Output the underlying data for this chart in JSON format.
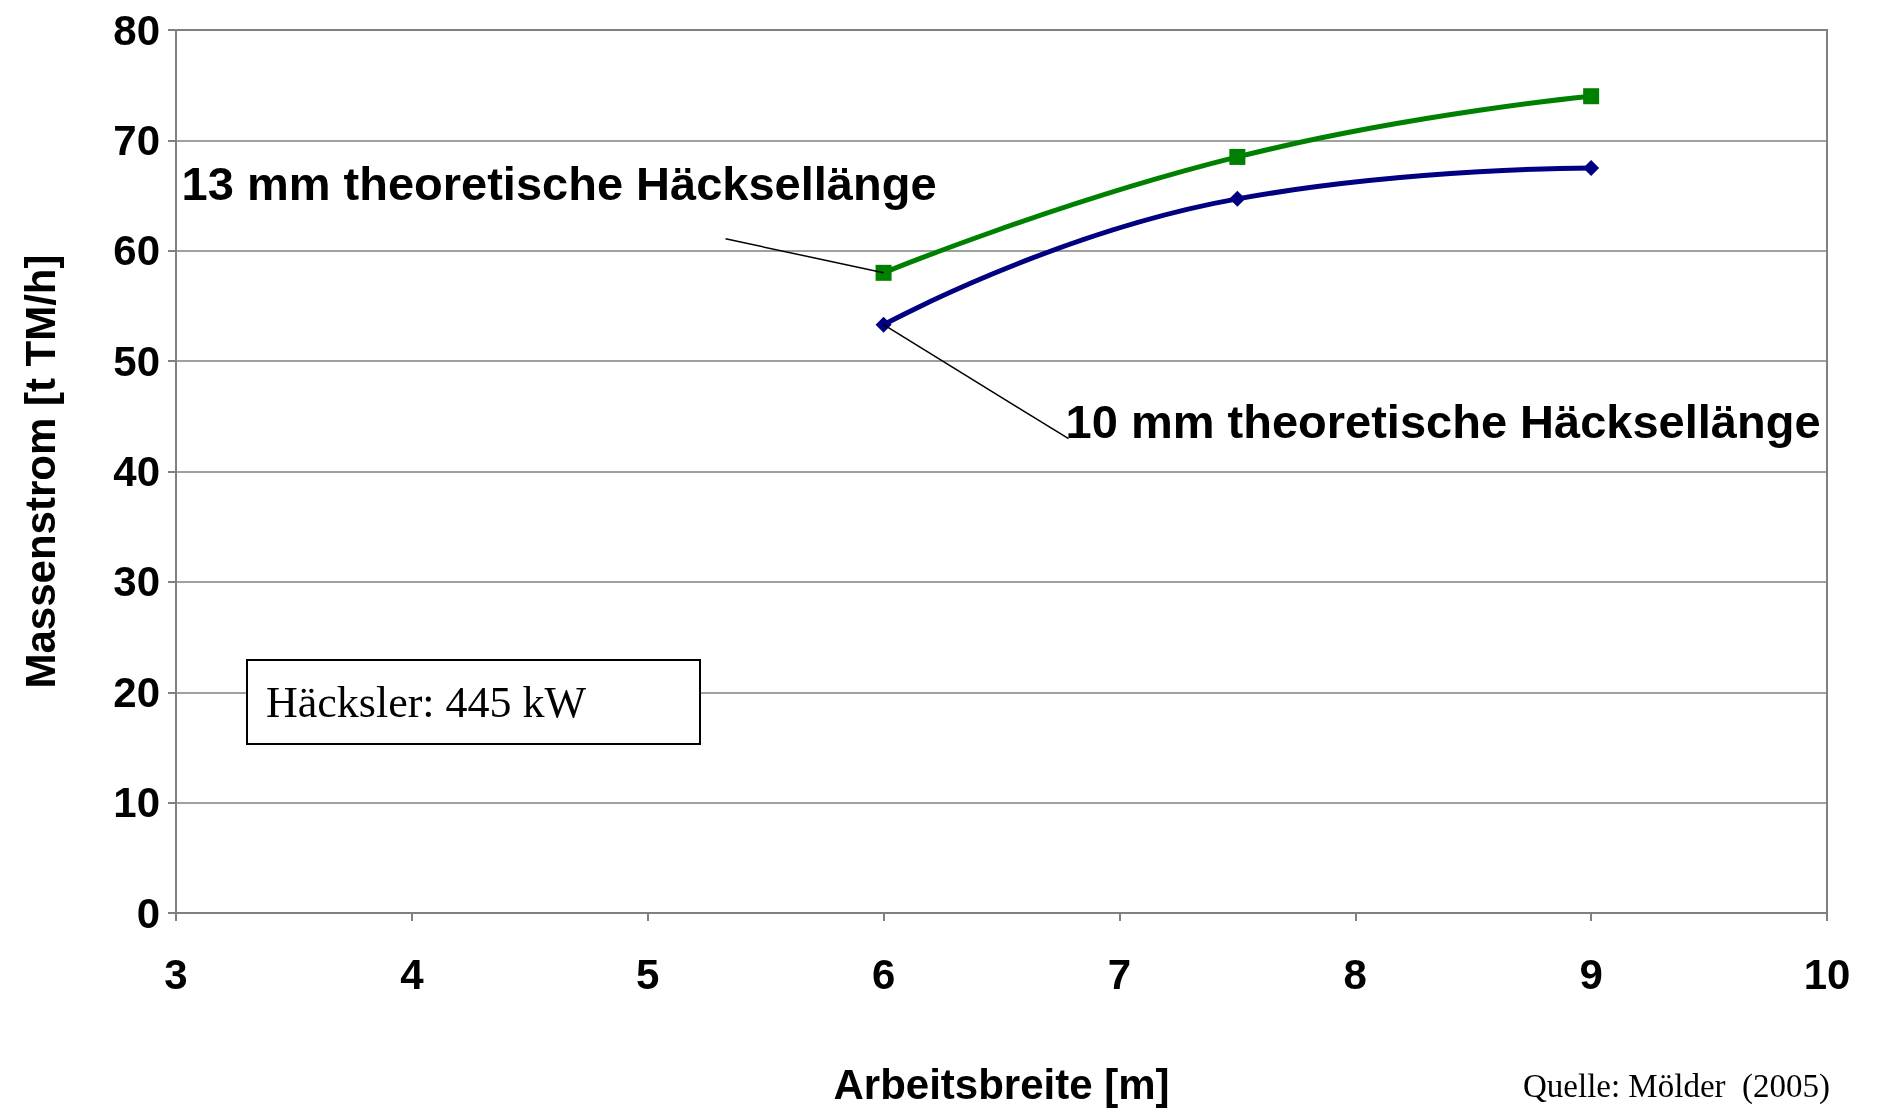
{
  "chart_data": {
    "type": "line",
    "xlabel": "Arbeitsbreite [m]",
    "ylabel": "Massenstrom [t TM/h]",
    "x": [
      6,
      7.5,
      9
    ],
    "series": [
      {
        "color": "#008000",
        "marker": "square",
        "values": [
          58,
          68.5,
          74
        ]
      },
      {
        "color": "#000080",
        "marker": "diamond",
        "values": [
          53.3,
          64.7,
          67.5
        ]
      }
    ],
    "xlim": [
      3,
      10
    ],
    "xticks": [
      3,
      4,
      5,
      6,
      7,
      8,
      9,
      10
    ],
    "ylim": [
      0,
      80
    ],
    "yticks": [
      0,
      10,
      20,
      30,
      40,
      50,
      60,
      70,
      80
    ],
    "grid": "y",
    "annotations": [
      {
        "text": "13 mm theoretische Häcksellänge",
        "x": 6,
        "y": 58
      },
      {
        "text": "10 mm theoretische Häcksellänge",
        "x": 6,
        "y": 53.3
      },
      "Häcksler: 445 kW",
      "Quelle: Mölder  (2005)"
    ]
  }
}
